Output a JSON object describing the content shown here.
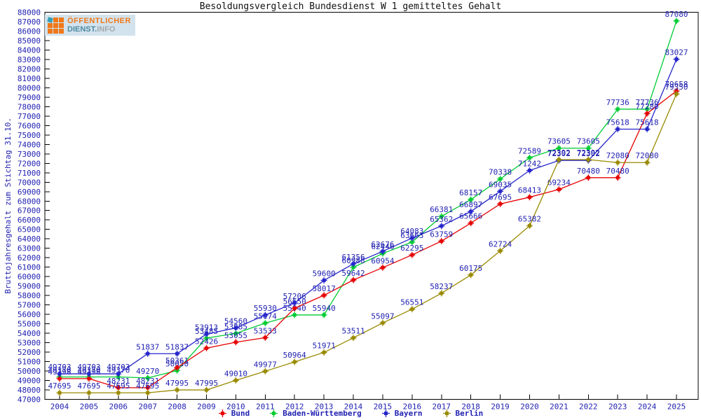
{
  "title": "Besoldungsvergleich Bundesdienst W 1 gemitteltes Gehalt",
  "logo": {
    "line1": "ÖFFENTLICHER",
    "line2_part1": "DIENST.",
    "line2_part2": "INFO"
  },
  "colors": {
    "axis": "#000000",
    "value_labels": "#2222b2",
    "title_text": "#101010"
  },
  "chart_data": {
    "type": "line",
    "title": "Besoldungsvergleich Bundesdienst W 1 gemitteltes Gehalt",
    "ylabel": "Bruttojahresgehalt zum Stichtag 31.10.",
    "xlabel": "",
    "x": [
      2004,
      2005,
      2006,
      2007,
      2008,
      2009,
      2010,
      2011,
      2012,
      2013,
      2014,
      2015,
      2016,
      2017,
      2018,
      2019,
      2020,
      2021,
      2022,
      2023,
      2024,
      2025
    ],
    "series": [
      {
        "name": "Bund",
        "color": "#e60000",
        "values": [
          49198,
          49198,
          48231,
          48231,
          50361,
          52426,
          53055,
          53533,
          56650,
          58017,
          59642,
          60954,
          62295,
          63759,
          65666,
          67695,
          68413,
          69234,
          70480,
          70480,
          77280,
          79658
        ]
      },
      {
        "name": "Baden-Württemberg",
        "color": "#00cc33",
        "values": [
          49370,
          49370,
          49370,
          49270,
          50050,
          53485,
          53985,
          55074,
          55940,
          55940,
          60988,
          62446,
          63663,
          66381,
          68157,
          70338,
          72589,
          73605,
          73605,
          77736,
          77736,
          87080
        ]
      },
      {
        "name": "Bayern",
        "color": "#2626cc",
        "values": [
          49703,
          49703,
          49703,
          51837,
          51837,
          53913,
          54560,
          55930,
          57206,
          59600,
          61356,
          62676,
          64083,
          65362,
          66897,
          69035,
          71242,
          72302,
          72302,
          75618,
          75618,
          83027
        ]
      },
      {
        "name": "Berlin",
        "color": "#998a00",
        "values": [
          47695,
          47695,
          47695,
          47695,
          47995,
          47995,
          49010,
          49977,
          50964,
          51971,
          53511,
          55097,
          56551,
          58237,
          60175,
          62724,
          65382,
          72392,
          72392,
          72080,
          72080,
          79350
        ]
      }
    ],
    "ylim": [
      47000,
      88000
    ],
    "ytick_step": 1000,
    "grid": false,
    "legend_position": "bottom",
    "point_labels": true
  }
}
